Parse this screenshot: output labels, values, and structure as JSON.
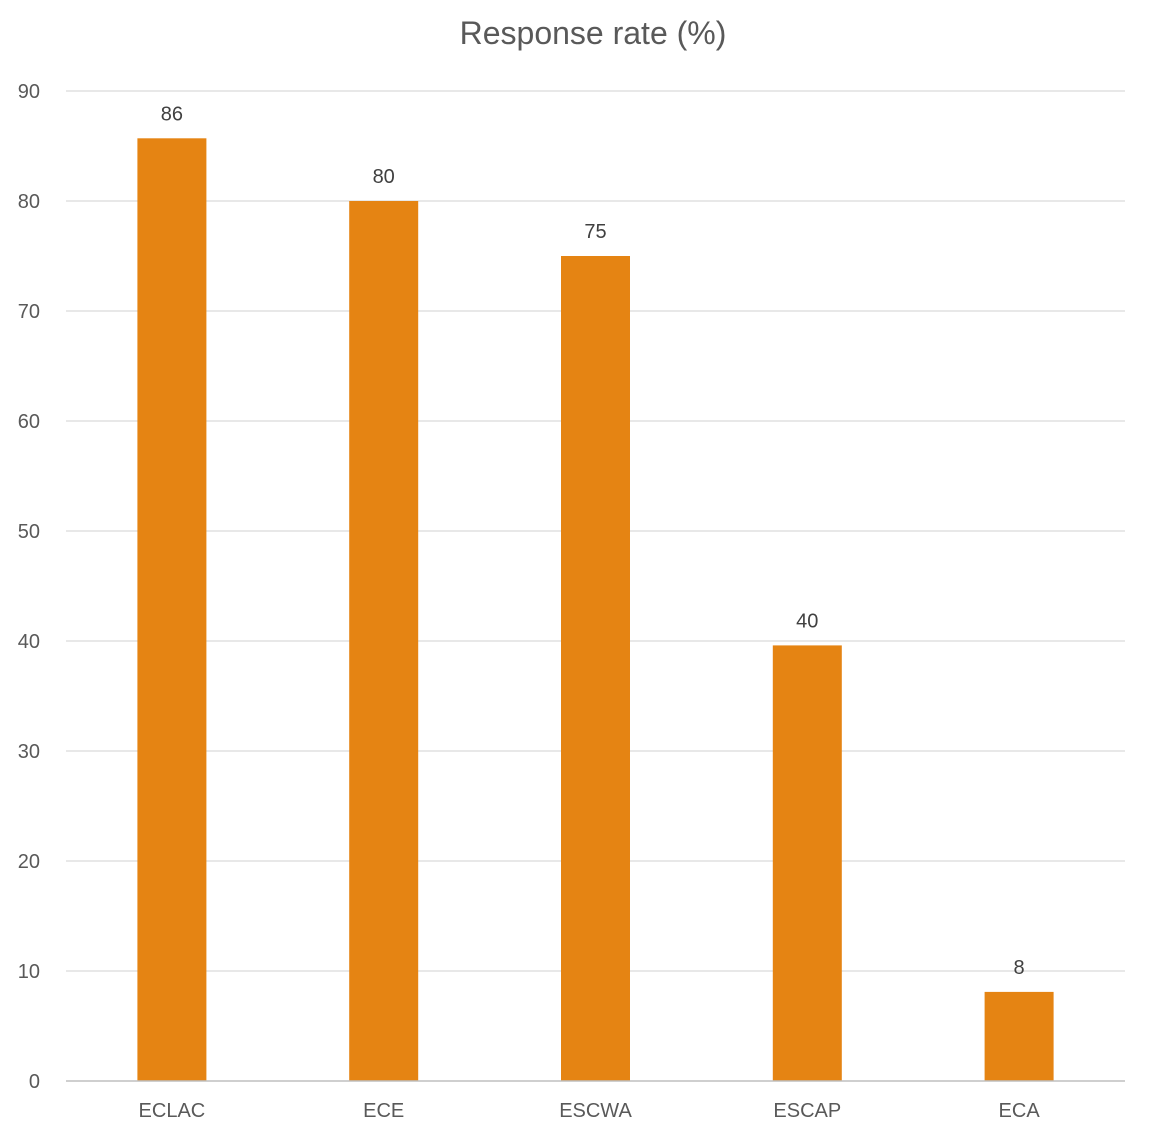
{
  "chart_data": {
    "type": "bar",
    "title": "Response rate (%)",
    "xlabel": "",
    "ylabel": "",
    "categories": [
      "ECLAC",
      "ECE",
      "ESCWA",
      "ESCAP",
      "ECA"
    ],
    "values": [
      85.7,
      80,
      75,
      39.6,
      8.1
    ],
    "data_labels": [
      "86",
      "80",
      "75",
      "40",
      "8"
    ],
    "ylim": [
      0,
      90
    ],
    "yticks": [
      0,
      10,
      20,
      30,
      40,
      50,
      60,
      70,
      80,
      90
    ],
    "grid": true,
    "legend": "none",
    "bar_color": "#E58413"
  }
}
